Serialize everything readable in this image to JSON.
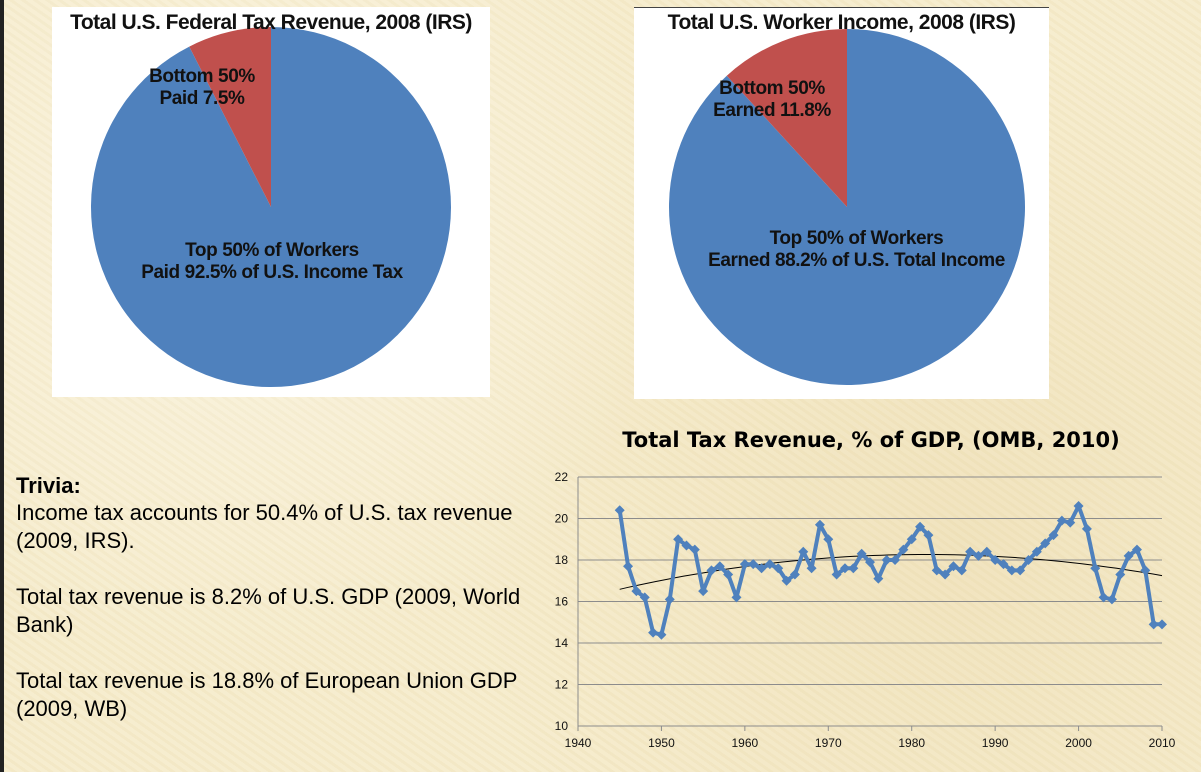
{
  "pie_charts": [
    {
      "title": "Total U.S. Federal Tax Revenue, 2008 (IRS)",
      "small_line1": "Bottom 50%",
      "small_line2": "Paid 7.5%",
      "large_line1": "Top 50% of Workers",
      "large_line2": "Paid 92.5% of U.S. Income Tax"
    },
    {
      "title": "Total U.S. Worker Income, 2008 (IRS)",
      "small_line1": "Bottom 50%",
      "small_line2": "Earned 11.8%",
      "large_line1": "Top 50% of Workers",
      "large_line2": "Earned 88.2% of U.S. Total Income"
    }
  ],
  "trivia": {
    "heading": "Trivia:",
    "p1": "Income tax accounts for 50.4% of U.S. tax revenue (2009, IRS).",
    "p2": "Total tax revenue is 8.2% of U.S. GDP (2009, World Bank)",
    "p3": "Total tax revenue is 18.8% of European Union GDP (2009, WB)"
  },
  "colors": {
    "blue": "#4f81bd",
    "red": "#c0504d",
    "trend": "#000000",
    "grid": "#8c8c8c"
  },
  "chart_data": [
    {
      "type": "pie",
      "title": "Total U.S. Federal Tax Revenue, 2008 (IRS)",
      "slices": [
        {
          "label": "Bottom 50% Paid 7.5%",
          "value": 7.5,
          "color": "#c0504d"
        },
        {
          "label": "Top 50% of Workers Paid 92.5% of U.S. Income Tax",
          "value": 92.5,
          "color": "#4f81bd"
        }
      ]
    },
    {
      "type": "pie",
      "title": "Total U.S. Worker Income, 2008 (IRS)",
      "slices": [
        {
          "label": "Bottom 50% Earned 11.8%",
          "value": 11.8,
          "color": "#c0504d"
        },
        {
          "label": "Top 50% of Workers Earned 88.2% of U.S. Total Income",
          "value": 88.2,
          "color": "#4f81bd"
        }
      ]
    },
    {
      "type": "line",
      "title": "Total Tax Revenue, % of GDP, (OMB, 2010)",
      "xlim": [
        1940,
        2010
      ],
      "ylim": [
        10,
        22
      ],
      "x_ticks": [
        1940,
        1950,
        1960,
        1970,
        1980,
        1990,
        2000,
        2010
      ],
      "y_ticks": [
        10,
        12,
        14,
        16,
        18,
        20,
        22
      ],
      "grid": "horizontal",
      "trendline": "polynomial",
      "x": [
        1945,
        1946,
        1947,
        1948,
        1949,
        1950,
        1951,
        1952,
        1953,
        1954,
        1955,
        1956,
        1957,
        1958,
        1959,
        1960,
        1961,
        1962,
        1963,
        1964,
        1965,
        1966,
        1967,
        1968,
        1969,
        1970,
        1971,
        1972,
        1973,
        1974,
        1975,
        1976,
        1977,
        1978,
        1979,
        1980,
        1981,
        1982,
        1983,
        1984,
        1985,
        1986,
        1987,
        1988,
        1989,
        1990,
        1991,
        1992,
        1993,
        1994,
        1995,
        1996,
        1997,
        1998,
        1999,
        2000,
        2001,
        2002,
        2003,
        2004,
        2005,
        2006,
        2007,
        2008,
        2009,
        2010
      ],
      "y": [
        20.4,
        17.7,
        16.5,
        16.2,
        14.5,
        14.4,
        16.1,
        19.0,
        18.7,
        18.5,
        16.5,
        17.5,
        17.7,
        17.3,
        16.2,
        17.8,
        17.8,
        17.6,
        17.8,
        17.6,
        17.0,
        17.3,
        18.4,
        17.6,
        19.7,
        19.0,
        17.3,
        17.6,
        17.6,
        18.3,
        17.9,
        17.1,
        18.0,
        18.0,
        18.5,
        19.0,
        19.6,
        19.2,
        17.5,
        17.3,
        17.7,
        17.5,
        18.4,
        18.2,
        18.4,
        18.0,
        17.8,
        17.5,
        17.5,
        18.0,
        18.4,
        18.8,
        19.2,
        19.9,
        19.8,
        20.6,
        19.5,
        17.6,
        16.2,
        16.1,
        17.3,
        18.2,
        18.5,
        17.5,
        14.9,
        14.9
      ]
    }
  ]
}
